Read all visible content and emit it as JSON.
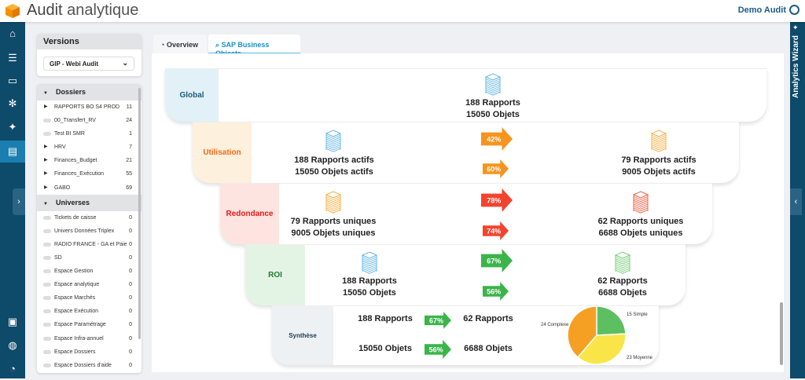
{
  "header": {
    "title_main": "Audit",
    "title_sub": "analytique",
    "user": "Demo Audit"
  },
  "colors": {
    "nav": "#0e4a6a",
    "accent": "#1a8fc8",
    "orange": "#f7941d",
    "red": "#f4442e",
    "green": "#3bb44a"
  },
  "rightbar": {
    "label": "Analytics Wizard"
  },
  "versions": {
    "title": "Versions",
    "selected": "GIP - Webi Audit"
  },
  "tree": {
    "dossiers_label": "Dossiers",
    "dossiers": [
      {
        "name": "RAPPORTS BO S4 PROD",
        "count": "11",
        "expandable": true
      },
      {
        "name": "00_Transfert_RV",
        "count": "24",
        "expandable": false
      },
      {
        "name": "Test BI SMR",
        "count": "1",
        "expandable": false
      },
      {
        "name": "HRV",
        "count": "7",
        "expandable": true
      },
      {
        "name": "Finances_Budget",
        "count": "21",
        "expandable": true
      },
      {
        "name": "Finances_Exécution",
        "count": "55",
        "expandable": true
      },
      {
        "name": "GABO",
        "count": "69",
        "expandable": true
      }
    ],
    "universes_label": "Universes",
    "universes": [
      {
        "name": "Tickets de caisse",
        "count": "0"
      },
      {
        "name": "Univers Données Triplex",
        "count": "0"
      },
      {
        "name": "RADIO FRANCE - GA et Paie",
        "count": "0"
      },
      {
        "name": "SD",
        "count": "0"
      },
      {
        "name": "Espace Gestion",
        "count": "0"
      },
      {
        "name": "Espace analytique",
        "count": "0"
      },
      {
        "name": "Espace Marchés",
        "count": "0"
      },
      {
        "name": "Espace Exécution",
        "count": "0"
      },
      {
        "name": "Espace Paramétrage",
        "count": "0"
      },
      {
        "name": "Espace Infra-annuel",
        "count": "0"
      },
      {
        "name": "Espace Dossiers",
        "count": "0"
      },
      {
        "name": "Espace Dossiers d'aide",
        "count": "0"
      }
    ]
  },
  "tabs": [
    {
      "label": "Overview"
    },
    {
      "label": "SAP Business Objects",
      "active": true
    }
  ],
  "funnel": {
    "global": {
      "label": "Global",
      "line1": "188 Rapports",
      "line2": "15050 Objets"
    },
    "utilisation": {
      "label": "Utilisation",
      "left1": "188 Rapports actifs",
      "left2": "15050 Objets actifs",
      "pct1": "42%",
      "pct2": "60%",
      "right1": "79 Rapports actifs",
      "right2": "9005 Objets actifs"
    },
    "redondance": {
      "label": "Redondance",
      "left1": "79 Rapports uniques",
      "left2": "9005 Objets uniques",
      "pct1": "78%",
      "pct2": "74%",
      "right1": "62 Rapports uniques",
      "right2": "6688 Objets uniques"
    },
    "roi": {
      "label": "ROI",
      "left1": "188 Rapports",
      "left2": "15050 Objets",
      "pct1": "67%",
      "pct2": "56%",
      "right1": "62 Rapports",
      "right2": "6688 Objets"
    },
    "synthese": {
      "label": "Synthèse",
      "a1": "188 Rapports",
      "p1": "67%",
      "b1": "62 Rapports",
      "a2": "15050 Objets",
      "p2": "56%",
      "b2": "6688 Objets"
    }
  },
  "chart_data": {
    "type": "pie",
    "slices": [
      {
        "label": "15 Simple",
        "value": 15,
        "color": "#5cbf60"
      },
      {
        "label": "23 Moyenne",
        "value": 23,
        "color": "#f9e547"
      },
      {
        "label": "24 Complexe",
        "value": 24,
        "color": "#f6a023"
      }
    ]
  }
}
